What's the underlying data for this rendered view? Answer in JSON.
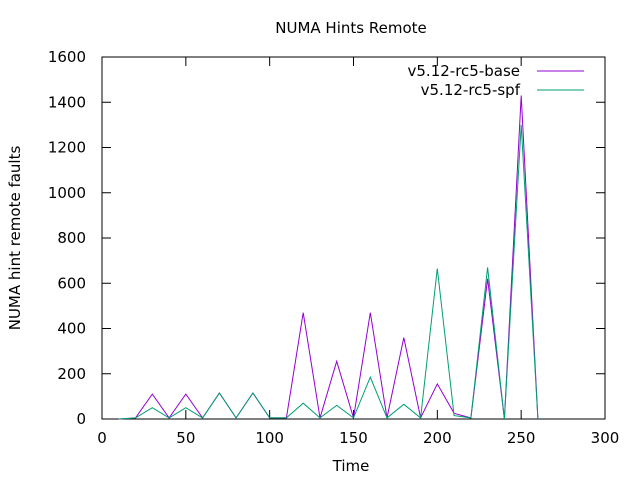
{
  "chart_data": {
    "type": "line",
    "title": "NUMA Hints Remote",
    "xlabel": "Time",
    "ylabel": "NUMA hint remote faults",
    "xlim": [
      0,
      300
    ],
    "ylim": [
      0,
      1600
    ],
    "xticks": [
      0,
      50,
      100,
      150,
      200,
      250,
      300
    ],
    "yticks": [
      0,
      200,
      400,
      600,
      800,
      1000,
      1200,
      1400,
      1600
    ],
    "grid": false,
    "legend_position": "top-right",
    "series": [
      {
        "name": "v5.12-rc5-base",
        "color": "#9400d3",
        "x": [
          10,
          20,
          30,
          40,
          50,
          60,
          70,
          80,
          90,
          100,
          110,
          120,
          130,
          140,
          150,
          160,
          170,
          180,
          190,
          200,
          210,
          220,
          230,
          240,
          250,
          260
        ],
        "y": [
          0,
          5,
          110,
          5,
          110,
          5,
          115,
          5,
          115,
          5,
          5,
          470,
          5,
          255,
          5,
          470,
          5,
          360,
          5,
          155,
          25,
          5,
          620,
          0,
          1430,
          0
        ]
      },
      {
        "name": "v5.12-rc5-spf",
        "color": "#009e73",
        "x": [
          10,
          20,
          30,
          40,
          50,
          60,
          70,
          80,
          90,
          100,
          110,
          120,
          130,
          140,
          150,
          160,
          170,
          180,
          190,
          200,
          210,
          220,
          230,
          240,
          250,
          260
        ],
        "y": [
          0,
          5,
          50,
          5,
          50,
          5,
          115,
          5,
          115,
          5,
          5,
          70,
          5,
          60,
          5,
          185,
          5,
          65,
          5,
          665,
          15,
          5,
          670,
          0,
          1300,
          0
        ]
      }
    ]
  }
}
